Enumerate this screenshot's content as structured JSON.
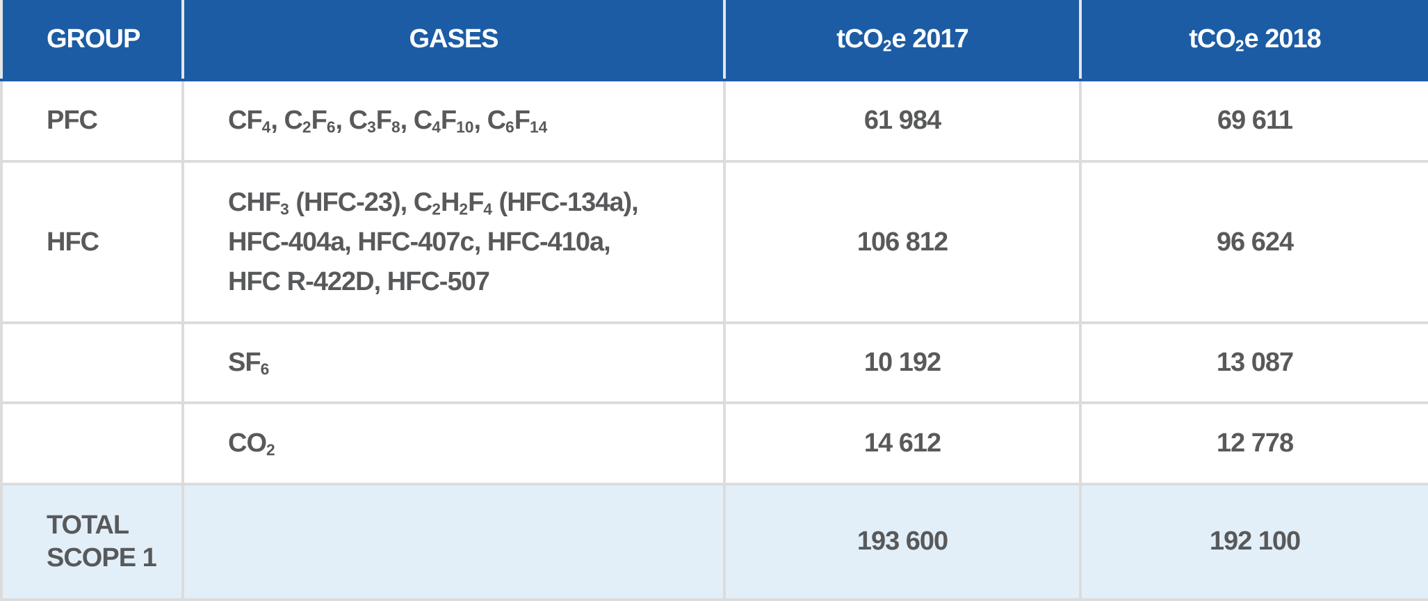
{
  "table": {
    "header": [
      [
        "GROUP"
      ],
      [
        "GASES"
      ],
      [
        "tCO",
        {
          "sub": "2"
        },
        "e 2017"
      ],
      [
        "tCO",
        {
          "sub": "2"
        },
        "e 2018"
      ]
    ],
    "rows": [
      {
        "group": "PFC",
        "gases": [
          [
            "CF",
            {
              "sub": "4"
            },
            ", C",
            {
              "sub": "2"
            },
            "F",
            {
              "sub": "6"
            },
            ", C",
            {
              "sub": "3"
            },
            "F",
            {
              "sub": "8"
            },
            ", C",
            {
              "sub": "4"
            },
            "F",
            {
              "sub": "10"
            },
            ", C",
            {
              "sub": "6"
            },
            "F",
            {
              "sub": "14"
            }
          ]
        ],
        "y2017": "61 984",
        "y2018": "69 611"
      },
      {
        "group": "HFC",
        "gases": [
          [
            "CHF",
            {
              "sub": "3"
            },
            " (HFC-23), C",
            {
              "sub": "2"
            },
            "H",
            {
              "sub": "2"
            },
            "F",
            {
              "sub": "4"
            },
            " (HFC-134a),"
          ],
          [
            "HFC-404a, HFC-407c, HFC-410a,"
          ],
          [
            "HFC R-422D, HFC-507"
          ]
        ],
        "y2017": "106 812",
        "y2018": "96 624"
      },
      {
        "gases": [
          [
            "SF",
            {
              "sub": "6"
            }
          ]
        ],
        "y2017": "10 192",
        "y2018": "13 087"
      },
      {
        "gases": [
          [
            "CO",
            {
              "sub": "2"
            }
          ]
        ],
        "y2017": "14 612",
        "y2018": "12 778"
      },
      {
        "group": "TOTAL SCOPE 1",
        "y2017": "193 600",
        "y2018": "192 100",
        "total": true
      }
    ]
  }
}
